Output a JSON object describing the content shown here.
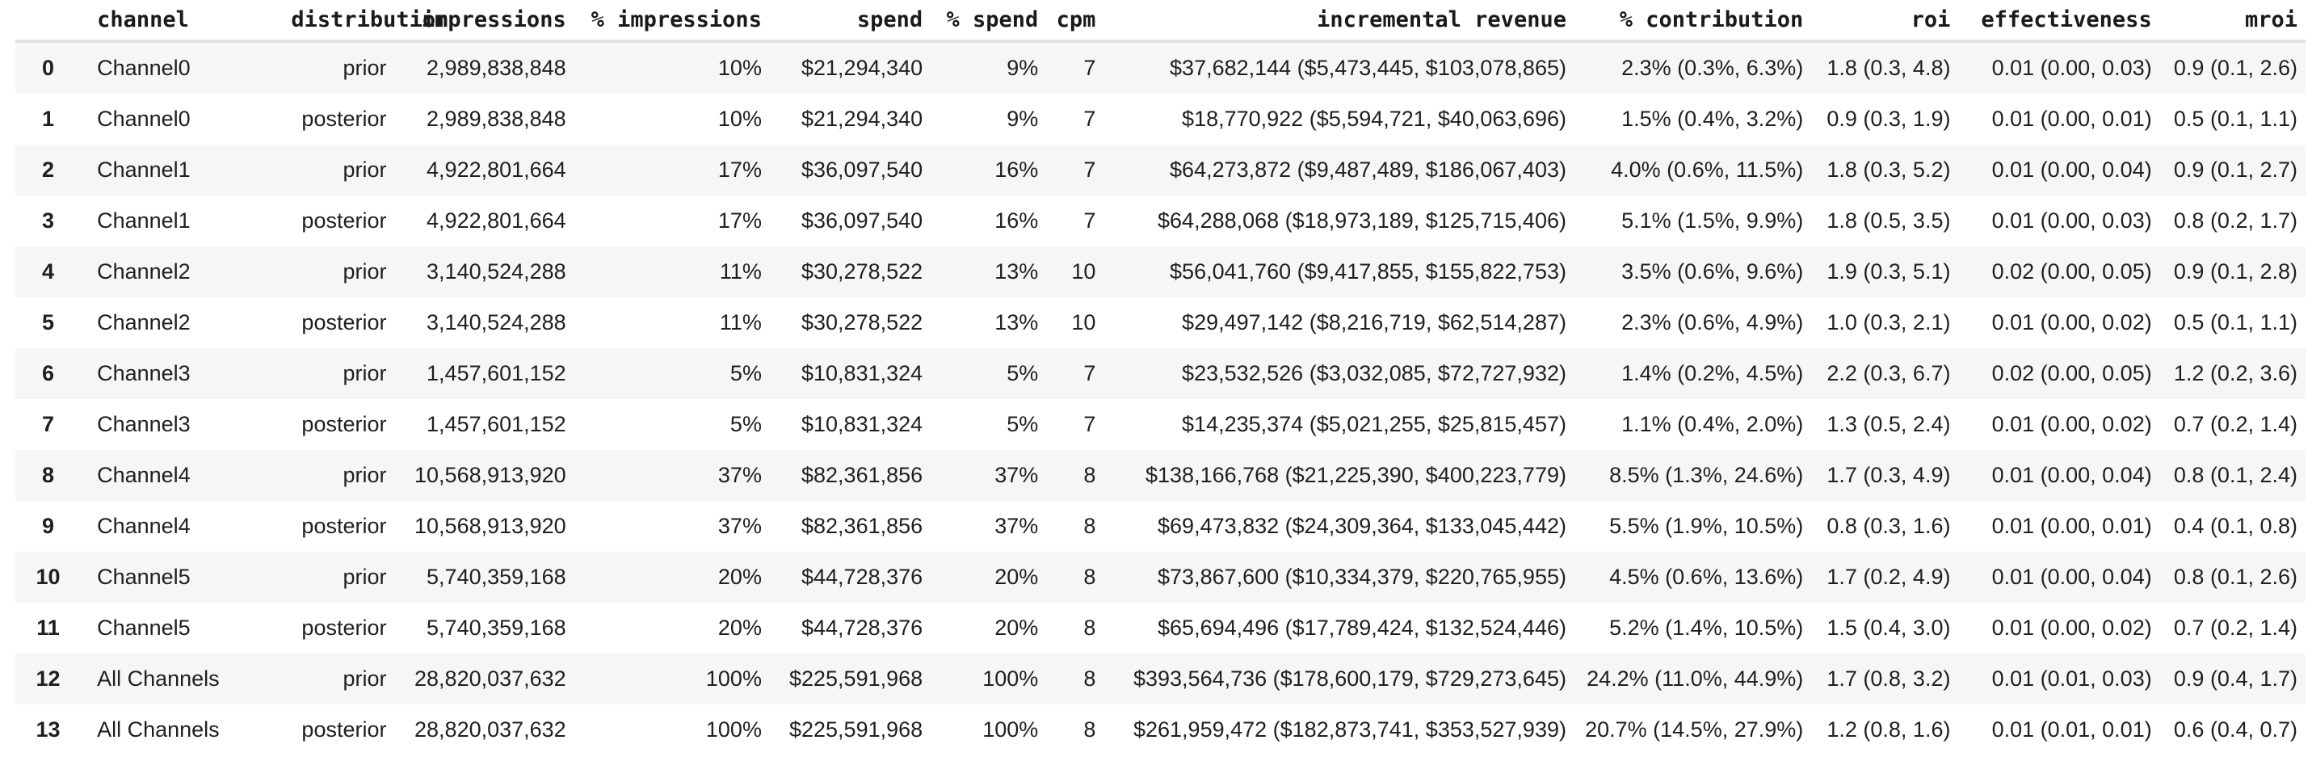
{
  "table": {
    "columns": [
      {
        "key": "index",
        "label": ""
      },
      {
        "key": "channel",
        "label": "channel"
      },
      {
        "key": "distribution",
        "label": "distribution"
      },
      {
        "key": "impressions",
        "label": "impressions"
      },
      {
        "key": "pct_impressions",
        "label": "% impressions"
      },
      {
        "key": "spend",
        "label": "spend"
      },
      {
        "key": "pct_spend",
        "label": "% spend"
      },
      {
        "key": "cpm",
        "label": "cpm"
      },
      {
        "key": "incremental_revenue",
        "label": "incremental revenue"
      },
      {
        "key": "pct_contribution",
        "label": "% contribution"
      },
      {
        "key": "roi",
        "label": "roi"
      },
      {
        "key": "effectiveness",
        "label": "effectiveness"
      },
      {
        "key": "mroi",
        "label": "mroi"
      }
    ],
    "rows": [
      [
        "0",
        "Channel0",
        "prior",
        "2,989,838,848",
        "10%",
        "$21,294,340",
        "9%",
        "7",
        "$37,682,144 ($5,473,445, $103,078,865)",
        "2.3% (0.3%, 6.3%)",
        "1.8 (0.3, 4.8)",
        "0.01 (0.00, 0.03)",
        "0.9 (0.1, 2.6)"
      ],
      [
        "1",
        "Channel0",
        "posterior",
        "2,989,838,848",
        "10%",
        "$21,294,340",
        "9%",
        "7",
        "$18,770,922 ($5,594,721, $40,063,696)",
        "1.5% (0.4%, 3.2%)",
        "0.9 (0.3, 1.9)",
        "0.01 (0.00, 0.01)",
        "0.5 (0.1, 1.1)"
      ],
      [
        "2",
        "Channel1",
        "prior",
        "4,922,801,664",
        "17%",
        "$36,097,540",
        "16%",
        "7",
        "$64,273,872 ($9,487,489, $186,067,403)",
        "4.0% (0.6%, 11.5%)",
        "1.8 (0.3, 5.2)",
        "0.01 (0.00, 0.04)",
        "0.9 (0.1, 2.7)"
      ],
      [
        "3",
        "Channel1",
        "posterior",
        "4,922,801,664",
        "17%",
        "$36,097,540",
        "16%",
        "7",
        "$64,288,068 ($18,973,189, $125,715,406)",
        "5.1% (1.5%, 9.9%)",
        "1.8 (0.5, 3.5)",
        "0.01 (0.00, 0.03)",
        "0.8 (0.2, 1.7)"
      ],
      [
        "4",
        "Channel2",
        "prior",
        "3,140,524,288",
        "11%",
        "$30,278,522",
        "13%",
        "10",
        "$56,041,760 ($9,417,855, $155,822,753)",
        "3.5% (0.6%, 9.6%)",
        "1.9 (0.3, 5.1)",
        "0.02 (0.00, 0.05)",
        "0.9 (0.1, 2.8)"
      ],
      [
        "5",
        "Channel2",
        "posterior",
        "3,140,524,288",
        "11%",
        "$30,278,522",
        "13%",
        "10",
        "$29,497,142 ($8,216,719, $62,514,287)",
        "2.3% (0.6%, 4.9%)",
        "1.0 (0.3, 2.1)",
        "0.01 (0.00, 0.02)",
        "0.5 (0.1, 1.1)"
      ],
      [
        "6",
        "Channel3",
        "prior",
        "1,457,601,152",
        "5%",
        "$10,831,324",
        "5%",
        "7",
        "$23,532,526 ($3,032,085, $72,727,932)",
        "1.4% (0.2%, 4.5%)",
        "2.2 (0.3, 6.7)",
        "0.02 (0.00, 0.05)",
        "1.2 (0.2, 3.6)"
      ],
      [
        "7",
        "Channel3",
        "posterior",
        "1,457,601,152",
        "5%",
        "$10,831,324",
        "5%",
        "7",
        "$14,235,374 ($5,021,255, $25,815,457)",
        "1.1% (0.4%, 2.0%)",
        "1.3 (0.5, 2.4)",
        "0.01 (0.00, 0.02)",
        "0.7 (0.2, 1.4)"
      ],
      [
        "8",
        "Channel4",
        "prior",
        "10,568,913,920",
        "37%",
        "$82,361,856",
        "37%",
        "8",
        "$138,166,768 ($21,225,390, $400,223,779)",
        "8.5% (1.3%, 24.6%)",
        "1.7 (0.3, 4.9)",
        "0.01 (0.00, 0.04)",
        "0.8 (0.1, 2.4)"
      ],
      [
        "9",
        "Channel4",
        "posterior",
        "10,568,913,920",
        "37%",
        "$82,361,856",
        "37%",
        "8",
        "$69,473,832 ($24,309,364, $133,045,442)",
        "5.5% (1.9%, 10.5%)",
        "0.8 (0.3, 1.6)",
        "0.01 (0.00, 0.01)",
        "0.4 (0.1, 0.8)"
      ],
      [
        "10",
        "Channel5",
        "prior",
        "5,740,359,168",
        "20%",
        "$44,728,376",
        "20%",
        "8",
        "$73,867,600 ($10,334,379, $220,765,955)",
        "4.5% (0.6%, 13.6%)",
        "1.7 (0.2, 4.9)",
        "0.01 (0.00, 0.04)",
        "0.8 (0.1, 2.6)"
      ],
      [
        "11",
        "Channel5",
        "posterior",
        "5,740,359,168",
        "20%",
        "$44,728,376",
        "20%",
        "8",
        "$65,694,496 ($17,789,424, $132,524,446)",
        "5.2% (1.4%, 10.5%)",
        "1.5 (0.4, 3.0)",
        "0.01 (0.00, 0.02)",
        "0.7 (0.2, 1.4)"
      ],
      [
        "12",
        "All Channels",
        "prior",
        "28,820,037,632",
        "100%",
        "$225,591,968",
        "100%",
        "8",
        "$393,564,736 ($178,600,179, $729,273,645)",
        "24.2% (11.0%, 44.9%)",
        "1.7 (0.8, 3.2)",
        "0.01 (0.01, 0.03)",
        "0.9 (0.4, 1.7)"
      ],
      [
        "13",
        "All Channels",
        "posterior",
        "28,820,037,632",
        "100%",
        "$225,591,968",
        "100%",
        "8",
        "$261,959,472 ($182,873,741, $353,527,939)",
        "20.7% (14.5%, 27.9%)",
        "1.2 (0.8, 1.6)",
        "0.01 (0.01, 0.01)",
        "0.6 (0.4, 0.7)"
      ]
    ]
  },
  "colors": {
    "row_stripe": "#f6f6f6",
    "header_divider": "#e0e0e0",
    "body_text": "#1f1f1f",
    "header_text": "#1a1a1a"
  }
}
